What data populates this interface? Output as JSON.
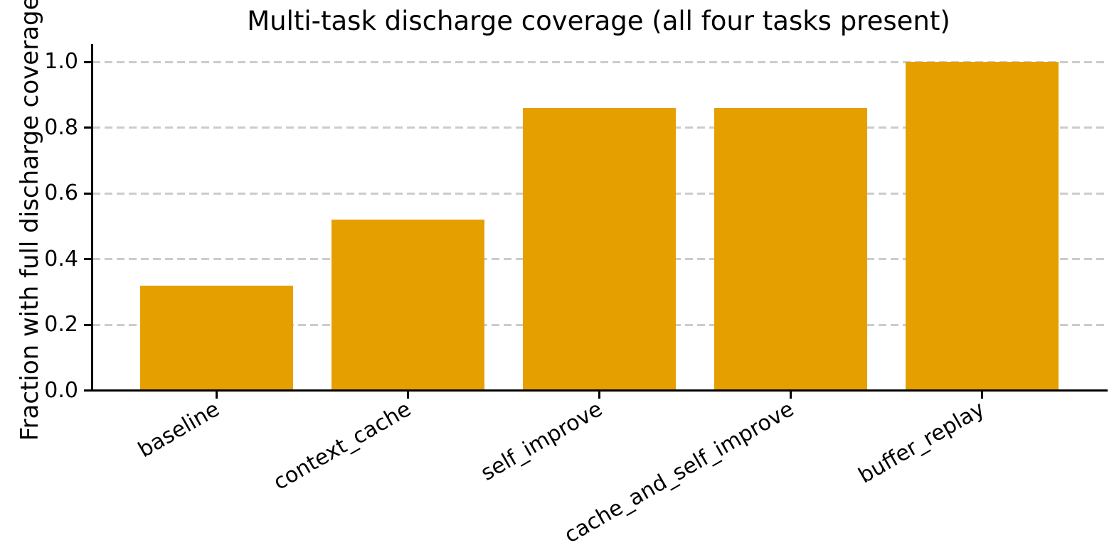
{
  "figure": {
    "title": "Multi-task discharge coverage (all four tasks present)",
    "ylabel": "Fraction with full discharge coverage"
  },
  "chart_data": {
    "type": "bar",
    "title": "Multi-task discharge coverage (all four tasks present)",
    "xlabel": "",
    "ylabel": "Fraction with full discharge coverage",
    "categories": [
      "baseline",
      "context_cache",
      "self_improve",
      "cache_and_self_improve",
      "buffer_replay"
    ],
    "values": [
      0.32,
      0.52,
      0.86,
      0.86,
      1.0
    ],
    "ytick_labels": [
      "0.0",
      "0.2",
      "0.4",
      "0.6",
      "0.8",
      "1.0"
    ],
    "ylim": [
      0,
      1.055
    ],
    "xtick_rotation_deg": 30,
    "grid": "horizontal-dashed",
    "legend": null,
    "bar_color": "#E5A000",
    "grid_color": "#CCCCCC",
    "axis_color": "#000000",
    "text_color": "#000000"
  }
}
